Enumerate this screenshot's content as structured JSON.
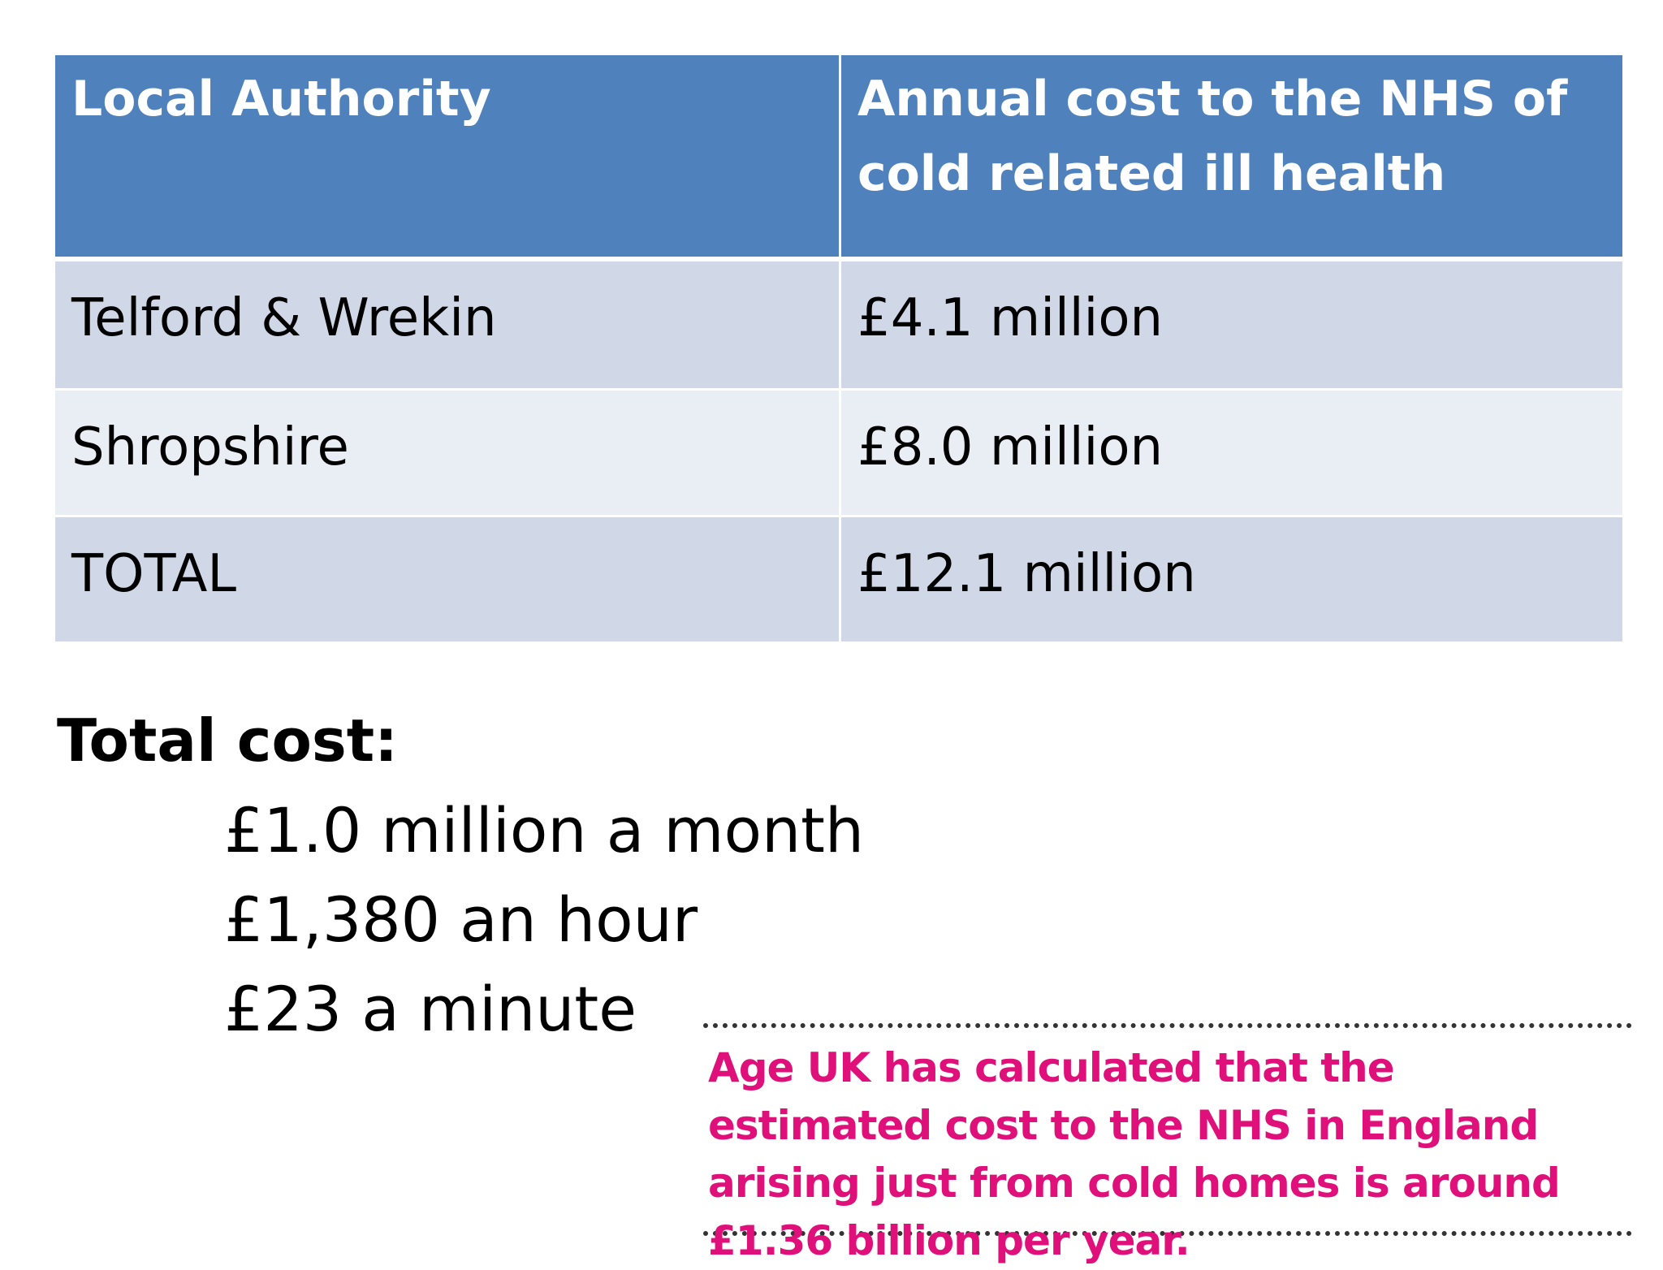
{
  "table": {
    "headers": [
      "Local Authority",
      "Annual cost to the NHS of cold related ill health"
    ],
    "rows": [
      [
        "Telford & Wrekin",
        "£4.1 million"
      ],
      [
        "Shropshire",
        "£8.0 million"
      ],
      [
        "TOTAL",
        "£12.1 million"
      ]
    ]
  },
  "total_cost": {
    "heading": "Total cost:",
    "lines": [
      "£1.0 million a month",
      "£1,380 an hour",
      "£23 a minute"
    ]
  },
  "callout": {
    "text": "Age UK has calculated that the estimated cost to the NHS in England arising just from cold homes is around £1.36 billion per year."
  },
  "colors": {
    "header_bg": "#4f81bd",
    "row_dark": "#d0d8e8",
    "row_light": "#e9edf4",
    "callout_text": "#e0107a"
  }
}
